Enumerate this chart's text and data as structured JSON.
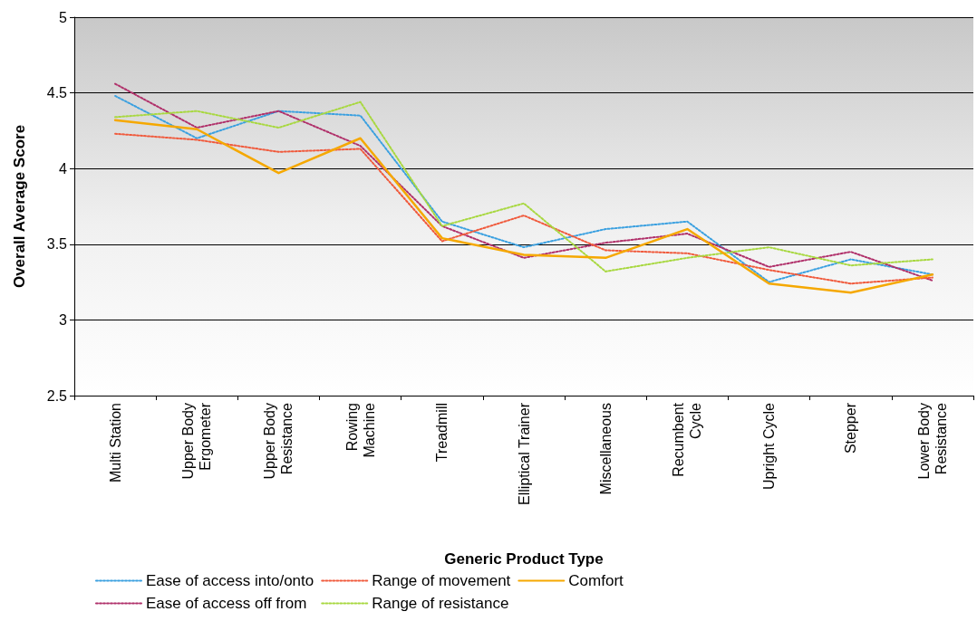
{
  "chart_data": {
    "type": "line",
    "xlabel": "Generic Product Type",
    "ylabel": "Overall Average Score",
    "categories": [
      "Multi Station",
      "Upper Body\nErgometer",
      "Upper Body\nResistance",
      "Rowing\nMachine",
      "Treadmill",
      "Elliptical Trainer",
      "Miscellaneous",
      "Recumbent\nCycle",
      "Upright Cycle",
      "Stepper",
      "Lower Body\nResistance"
    ],
    "series": [
      {
        "name": "Ease of access into/onto",
        "color": "#3aa0e0",
        "line_style": "dotted",
        "values": [
          4.48,
          4.2,
          4.38,
          4.35,
          3.65,
          3.48,
          3.6,
          3.65,
          3.25,
          3.4,
          3.3
        ]
      },
      {
        "name": "Ease of access off from",
        "color": "#b0306a",
        "line_style": "dotted",
        "values": [
          4.56,
          4.27,
          4.38,
          4.15,
          3.62,
          3.41,
          3.51,
          3.57,
          3.35,
          3.45,
          3.26
        ]
      },
      {
        "name": "Range of movement",
        "color": "#f05a3c",
        "line_style": "dotted",
        "values": [
          4.23,
          4.19,
          4.11,
          4.13,
          3.52,
          3.69,
          3.46,
          3.44,
          3.33,
          3.24,
          3.28
        ]
      },
      {
        "name": "Range of resistance",
        "color": "#a8d840",
        "line_style": "dotted",
        "values": [
          4.34,
          4.38,
          4.27,
          4.44,
          3.62,
          3.77,
          3.32,
          3.41,
          3.48,
          3.36,
          3.4
        ]
      },
      {
        "name": "Comfort",
        "color": "#f5a800",
        "line_style": "solid",
        "values": [
          4.32,
          4.26,
          3.97,
          4.2,
          3.54,
          3.43,
          3.41,
          3.6,
          3.24,
          3.18,
          3.3
        ]
      }
    ],
    "ylim": [
      2.5,
      5
    ],
    "yticks": [
      2.5,
      3,
      3.5,
      4,
      4.5,
      5
    ],
    "grid": "y",
    "marker": "none",
    "legend": "bottom"
  }
}
